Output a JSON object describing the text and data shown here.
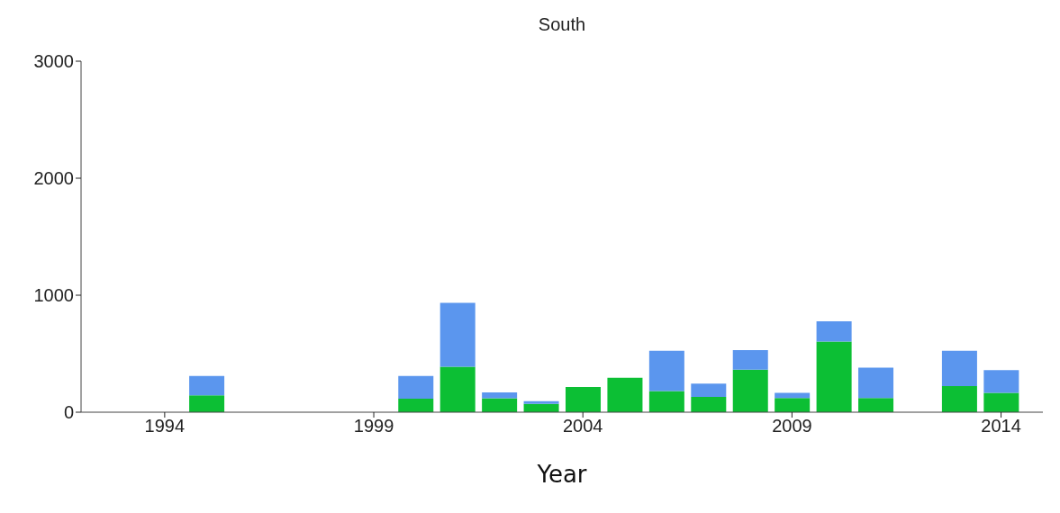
{
  "chart_data": {
    "type": "bar",
    "title": "South",
    "xlabel": "Year",
    "stacked": true,
    "x": [
      1995,
      2000,
      2001,
      2002,
      2003,
      2004,
      2005,
      2006,
      2007,
      2008,
      2009,
      2010,
      2011,
      2013,
      2014
    ],
    "series": [
      {
        "color": "#0cbf34",
        "values": [
          144,
          115,
          388,
          120,
          72,
          216,
          295,
          180,
          130,
          364,
          122,
          604,
          122,
          223,
          165
        ]
      },
      {
        "color": "#5b96ee",
        "values": [
          165,
          194,
          547,
          50,
          22,
          null,
          null,
          345,
          115,
          166,
          43,
          173,
          259,
          302,
          195
        ]
      }
    ],
    "xlim": [
      1992,
      2015
    ],
    "xticks": [
      1994,
      1999,
      2004,
      2009,
      2014
    ],
    "ylim": [
      0,
      3000
    ],
    "yticks": [
      0,
      1000,
      2000,
      3000
    ],
    "grid": false,
    "legend": false
  }
}
